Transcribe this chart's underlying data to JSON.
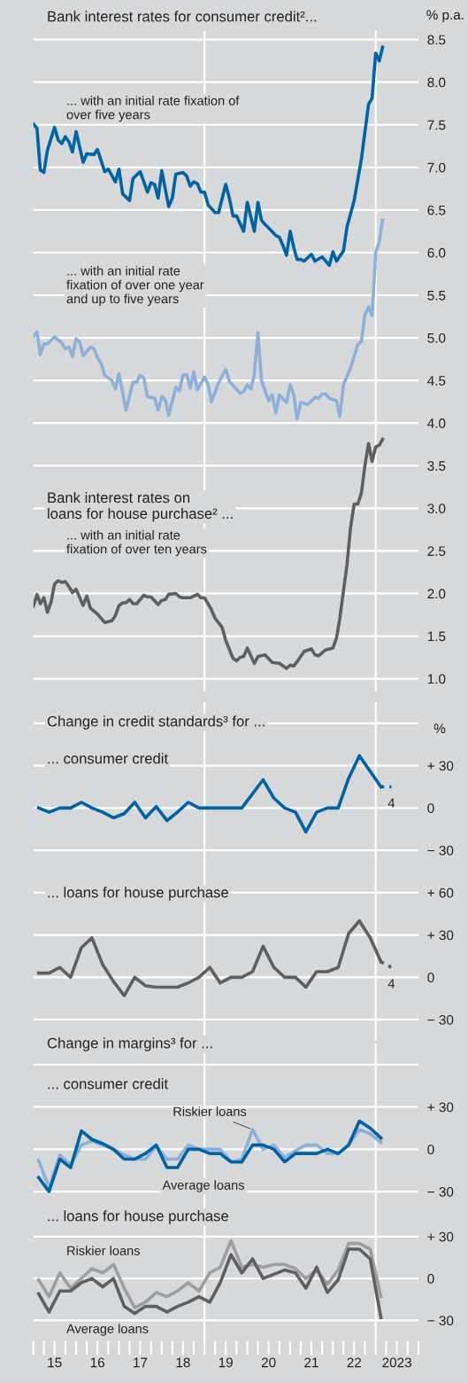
{
  "chart_data": [
    {
      "type": "line",
      "title": "Bank interest rates for consumer credit²...",
      "ylabel": "% p.a.",
      "xlim": [
        "2015-01-01",
        "2024-01-01"
      ],
      "ylim": [
        0.85,
        8.6
      ],
      "tick_labels": "y",
      "grid": "y",
      "legend": false,
      "yticks": [
        {
          "value": 1,
          "label": "1.0"
        },
        1.5,
        {
          "value": 2,
          "label": "2.0"
        },
        2.5,
        {
          "value": 3,
          "label": "3.0"
        },
        3.5,
        {
          "value": 4,
          "label": "4.0"
        },
        4.5,
        {
          "value": 5,
          "label": "5.0"
        },
        5.5,
        {
          "value": 6,
          "label": "6.0"
        },
        6.5,
        {
          "value": 7,
          "label": "7.0"
        },
        7.5,
        {
          "value": 8,
          "label": "8.0"
        },
        8.5
      ],
      "annotations": [
        "Bank interest rates on\nloans for house purchase² ..."
      ],
      "ref_lines": [
        {
          "axis": "x",
          "value": "2019-01-01",
          "color": "#ffffff"
        },
        {
          "axis": "x",
          "value": "2023-01-01",
          "color": "#ffffff"
        }
      ],
      "series": [
        {
          "name": "... with an initial rate fixation of\nover five years",
          "color": "#0063a3",
          "x": [
            "2015-01",
            "2015-02",
            "2015-03",
            "2015-04",
            "2015-05",
            "2015-07",
            "2015-08",
            "2015-09",
            "2015-10",
            "2015-11",
            "2015-12",
            "2016-01",
            "2016-03",
            "2016-04",
            "2016-06",
            "2016-07",
            "2016-09",
            "2016-10",
            "2016-12",
            "2017-01",
            "2017-02",
            "2017-04",
            "2017-05",
            "2017-07",
            "2017-09",
            "2017-10",
            "2017-11",
            "2017-12",
            "2018-01",
            "2018-03",
            "2018-04",
            "2018-05",
            "2018-07",
            "2018-08",
            "2018-09",
            "2018-10",
            "2018-11",
            "2018-12",
            "2019-01",
            "2019-02",
            "2019-04",
            "2019-05",
            "2019-07",
            "2019-08",
            "2019-09",
            "2019-10",
            "2019-12",
            "2020-01",
            "2020-03",
            "2020-04",
            "2020-05",
            "2020-06",
            "2020-07",
            "2020-09",
            "2020-10",
            "2020-11",
            "2020-12",
            "2021-01",
            "2021-02",
            "2021-03",
            "2021-04",
            "2021-05",
            "2021-07",
            "2021-08",
            "2021-10",
            "2021-12",
            "2022-01",
            "2022-02",
            "2022-04",
            "2022-05",
            "2022-07",
            "2022-09",
            "2022-11",
            "2022-12",
            "2023-01",
            "2023-02",
            "2023-03"
          ],
          "values": [
            7.51,
            7.46,
            6.97,
            6.94,
            7.2,
            7.47,
            7.32,
            7.28,
            7.36,
            7.3,
            7.18,
            7.42,
            7.06,
            7.16,
            7.15,
            7.21,
            6.95,
            6.98,
            6.83,
            6.98,
            6.69,
            6.61,
            6.87,
            6.95,
            6.71,
            6.82,
            6.8,
            6.64,
            6.96,
            6.54,
            6.64,
            6.92,
            6.94,
            6.9,
            6.78,
            6.83,
            6.81,
            6.71,
            6.71,
            6.56,
            6.47,
            6.47,
            6.8,
            6.64,
            6.43,
            6.43,
            6.25,
            6.59,
            6.25,
            6.59,
            6.38,
            6.33,
            6.29,
            6.2,
            6.18,
            6.08,
            5.97,
            6.25,
            6.06,
            5.92,
            5.92,
            5.9,
            5.98,
            5.9,
            5.95,
            5.85,
            6.01,
            5.9,
            6.02,
            6.3,
            6.61,
            7.1,
            7.74,
            7.81,
            8.34,
            8.25,
            8.41
          ]
        },
        {
          "name": "... with an initial rate\nfixation of over one year\nand up to five years",
          "color": "#8dafd8",
          "x": [
            "2015-01",
            "2015-02",
            "2015-03",
            "2015-04",
            "2015-05",
            "2015-07",
            "2015-09",
            "2015-10",
            "2015-11",
            "2015-12",
            "2016-01",
            "2016-02",
            "2016-03",
            "2016-05",
            "2016-06",
            "2016-07",
            "2016-08",
            "2016-09",
            "2016-11",
            "2016-12",
            "2017-01",
            "2017-03",
            "2017-05",
            "2017-06",
            "2017-07",
            "2017-08",
            "2017-09",
            "2017-11",
            "2017-12",
            "2018-01",
            "2018-02",
            "2018-03",
            "2018-05",
            "2018-06",
            "2018-07",
            "2018-08",
            "2018-09",
            "2018-10",
            "2018-11",
            "2019-01",
            "2019-02",
            "2019-03",
            "2019-05",
            "2019-07",
            "2019-08",
            "2019-11",
            "2019-12",
            "2020-01",
            "2020-02",
            "2020-03",
            "2020-04",
            "2020-05",
            "2020-07",
            "2020-08",
            "2020-09",
            "2020-10",
            "2020-12",
            "2021-01",
            "2021-02",
            "2021-03",
            "2021-04",
            "2021-06",
            "2021-08",
            "2021-09",
            "2021-10",
            "2021-11",
            "2021-12",
            "2022-02",
            "2022-03",
            "2022-04",
            "2022-06",
            "2022-08",
            "2022-09",
            "2022-10",
            "2022-11",
            "2022-12",
            "2023-01",
            "2023-02",
            "2023-03"
          ],
          "values": [
            5.01,
            5.07,
            4.8,
            4.93,
            4.93,
            5.01,
            4.94,
            4.87,
            4.89,
            4.78,
            4.99,
            4.95,
            4.79,
            4.89,
            4.87,
            4.77,
            4.7,
            4.56,
            4.5,
            4.4,
            4.58,
            4.15,
            4.48,
            4.48,
            4.56,
            4.53,
            4.31,
            4.29,
            4.15,
            4.31,
            4.27,
            4.09,
            4.42,
            4.38,
            4.56,
            4.57,
            4.41,
            4.6,
            4.39,
            4.54,
            4.45,
            4.25,
            4.47,
            4.63,
            4.49,
            4.35,
            4.37,
            4.45,
            4.4,
            4.57,
            5.06,
            4.5,
            4.26,
            4.33,
            4.12,
            4.33,
            4.24,
            4.45,
            4.33,
            4.05,
            4.24,
            4.22,
            4.3,
            4.29,
            4.34,
            4.34,
            4.29,
            4.26,
            4.08,
            4.45,
            4.65,
            4.92,
            4.96,
            5.27,
            5.36,
            5.26,
            6.0,
            6.13,
            6.38
          ]
        },
        {
          "name": "... with an initial rate\nfixation of over ten years",
          "color": "#5e5f61",
          "x": [
            "2015-01",
            "2015-02",
            "2015-03",
            "2015-04",
            "2015-05",
            "2015-06",
            "2015-07",
            "2015-08",
            "2015-09",
            "2015-10",
            "2015-11",
            "2015-12",
            "2016-01",
            "2016-03",
            "2016-04",
            "2016-05",
            "2016-07",
            "2016-09",
            "2016-11",
            "2016-12",
            "2017-01",
            "2017-02",
            "2017-03",
            "2017-04",
            "2017-05",
            "2017-06",
            "2017-08",
            "2017-09",
            "2017-10",
            "2017-12",
            "2018-01",
            "2018-02",
            "2018-03",
            "2018-05",
            "2018-06",
            "2018-07",
            "2018-09",
            "2018-11",
            "2018-12",
            "2019-01",
            "2019-03",
            "2019-04",
            "2019-06",
            "2019-07",
            "2019-09",
            "2019-10",
            "2019-11",
            "2019-12",
            "2020-01",
            "2020-03",
            "2020-04",
            "2020-06",
            "2020-08",
            "2020-10",
            "2020-12",
            "2021-01",
            "2021-02",
            "2021-03",
            "2021-05",
            "2021-07",
            "2021-08",
            "2021-09",
            "2021-11",
            "2022-01",
            "2022-02",
            "2022-03",
            "2022-05",
            "2022-06",
            "2022-07",
            "2022-08",
            "2022-09",
            "2022-10",
            "2022-11",
            "2022-12",
            "2023-01",
            "2023-02",
            "2023-03"
          ],
          "values": [
            1.85,
            1.99,
            1.88,
            1.95,
            1.78,
            1.9,
            2.11,
            2.15,
            2.13,
            2.14,
            2.08,
            2.01,
            2.05,
            1.86,
            1.97,
            1.83,
            1.76,
            1.66,
            1.68,
            1.74,
            1.86,
            1.89,
            1.89,
            1.93,
            1.88,
            1.88,
            1.98,
            1.96,
            1.96,
            1.87,
            1.92,
            1.93,
            1.99,
            2.0,
            1.96,
            1.95,
            1.95,
            1.99,
            1.95,
            1.95,
            1.81,
            1.71,
            1.6,
            1.45,
            1.24,
            1.21,
            1.25,
            1.26,
            1.36,
            1.18,
            1.26,
            1.28,
            1.19,
            1.18,
            1.12,
            1.16,
            1.15,
            1.2,
            1.32,
            1.35,
            1.28,
            1.27,
            1.34,
            1.36,
            1.48,
            1.71,
            2.34,
            2.78,
            3.05,
            3.05,
            3.18,
            3.5,
            3.76,
            3.55,
            3.72,
            3.74,
            3.81
          ]
        }
      ]
    },
    {
      "type": "line",
      "title": "Change in credit standards³ for ...",
      "subtitle": "... consumer credit",
      "ylabel": "%",
      "xlim": [
        "2015-01-01",
        "2024-01-01"
      ],
      "ylim": [
        -45,
        75
      ],
      "tick_labels": "y",
      "grid": "y",
      "legend": false,
      "yticks": [
        {
          "value": -30,
          "label": "− 30"
        },
        0,
        {
          "value": 30,
          "label": "+ 30"
        },
        {
          "value": 60,
          "label": null
        }
      ],
      "x": [
        "2015-02-15",
        "2015-05-15",
        "2015-08-15",
        "2015-11-15",
        "2016-02-15",
        "2016-05-15",
        "2016-08-15",
        "2016-11-15",
        "2017-02-15",
        "2017-05-15",
        "2017-08-15",
        "2017-11-15",
        "2018-02-15",
        "2018-05-15",
        "2018-08-15",
        "2018-11-15",
        "2019-02-15",
        "2019-05-15",
        "2019-08-15",
        "2019-11-15",
        "2020-02-15",
        "2020-05-15",
        "2020-08-15",
        "2020-11-15",
        "2021-02-15",
        "2021-05-15",
        "2021-08-15",
        "2021-11-15",
        "2022-02-15",
        "2022-05-15",
        "2022-08-15",
        "2022-11-15",
        "2023-02-15"
      ],
      "annotations": [
        {
          "text": "4",
          "x": "2023-05-15",
          "y": 15
        }
      ],
      "ref_lines": [
        {
          "axis": "x",
          "value": "2019-01-01",
          "color": "#ffffff"
        },
        {
          "axis": "x",
          "value": "2023-01-01",
          "color": "#ffffff"
        }
      ],
      "series": [
        {
          "color": "#0063a3",
          "values": [
            0,
            -3,
            0,
            0,
            4,
            0,
            -3,
            -7,
            -4,
            4,
            -7,
            1,
            -9,
            -3,
            4,
            0,
            0,
            0,
            0,
            0,
            10,
            20,
            7,
            0,
            -3,
            -17,
            -3,
            0,
            0,
            21,
            37,
            26,
            15
          ]
        },
        {
          "color": "#0063a3",
          "line_style": "dotted",
          "x": [
            "2023-02-15",
            "2023-05-15"
          ],
          "values": [
            15,
            15
          ]
        }
      ]
    },
    {
      "type": "line",
      "title": "... loans for house purchase",
      "xlim": [
        "2015-01-01",
        "2024-01-01"
      ],
      "ylim": [
        -45,
        75
      ],
      "tick_labels": "y",
      "grid": "y",
      "legend": false,
      "yticks": [
        {
          "value": -30,
          "label": "− 30"
        },
        0,
        {
          "value": 30,
          "label": "+ 30"
        },
        {
          "value": 60,
          "label": "+ 60"
        }
      ],
      "x": [
        "2015-02-15",
        "2015-05-15",
        "2015-08-15",
        "2015-11-15",
        "2016-02-15",
        "2016-05-15",
        "2016-08-15",
        "2016-11-15",
        "2017-02-15",
        "2017-05-15",
        "2017-08-15",
        "2017-11-15",
        "2018-02-15",
        "2018-05-15",
        "2018-08-15",
        "2018-11-15",
        "2019-02-15",
        "2019-05-15",
        "2019-08-15",
        "2019-11-15",
        "2020-02-15",
        "2020-05-15",
        "2020-08-15",
        "2020-11-15",
        "2021-02-15",
        "2021-05-15",
        "2021-08-15",
        "2021-11-15",
        "2022-02-15",
        "2022-05-15",
        "2022-08-15",
        "2022-11-15",
        "2023-02-15"
      ],
      "annotations": [
        {
          "text": "4",
          "x": "2023-05-15",
          "y": 7
        }
      ],
      "ref_lines": [
        {
          "axis": "x",
          "value": "2019-01-01",
          "color": "#ffffff"
        },
        {
          "axis": "x",
          "value": "2023-01-01",
          "color": "#ffffff"
        }
      ],
      "series": [
        {
          "color": "#5e5f61",
          "values": [
            3,
            3,
            7,
            0,
            21,
            28,
            9,
            -3,
            -13,
            0,
            -6,
            -7,
            -7,
            -7,
            -4,
            0,
            7,
            -4,
            0,
            0,
            4,
            22,
            7,
            0,
            0,
            -7,
            4,
            4,
            7,
            31,
            40,
            28,
            11
          ]
        },
        {
          "color": "#5e5f61",
          "line_style": "dotted",
          "x": [
            "2023-02-15",
            "2023-05-15"
          ],
          "values": [
            11,
            7
          ]
        }
      ]
    },
    {
      "type": "line",
      "title": "Change in margins³ for ...",
      "subtitle": "... consumer credit",
      "xlim": [
        "2015-01-01",
        "2024-01-01"
      ],
      "ylim": [
        -45,
        75
      ],
      "tick_labels": "y",
      "grid": "y",
      "legend": false,
      "yticks": [
        {
          "value": -30,
          "label": "− 30"
        },
        0,
        {
          "value": 30,
          "label": "+ 30"
        },
        {
          "value": 60,
          "label": null
        }
      ],
      "x": [
        "2015-02-15",
        "2015-05-15",
        "2015-08-15",
        "2015-11-15",
        "2016-02-15",
        "2016-05-15",
        "2016-08-15",
        "2016-11-15",
        "2017-02-15",
        "2017-05-15",
        "2017-08-15",
        "2017-11-15",
        "2018-02-15",
        "2018-05-15",
        "2018-08-15",
        "2018-11-15",
        "2019-02-15",
        "2019-05-15",
        "2019-08-15",
        "2019-11-15",
        "2020-02-15",
        "2020-05-15",
        "2020-08-15",
        "2020-11-15",
        "2021-02-15",
        "2021-05-15",
        "2021-08-15",
        "2021-11-15",
        "2022-02-15",
        "2022-05-15",
        "2022-08-15",
        "2022-11-15",
        "2023-02-15"
      ],
      "ref_lines": [
        {
          "axis": "x",
          "value": "2019-01-01",
          "color": "#ffffff"
        },
        {
          "axis": "x",
          "value": "2023-01-01",
          "color": "#ffffff"
        }
      ],
      "series": [
        {
          "name": "Riskier loans",
          "color": "#8dafd8",
          "values": [
            -8,
            -27,
            -4,
            -11,
            3,
            6,
            3,
            0,
            -4,
            -7,
            -7,
            2,
            -7,
            -7,
            3,
            0,
            0,
            0,
            -9,
            -7,
            14,
            0,
            3,
            -6,
            -1,
            3,
            3,
            -3,
            -3,
            3,
            14,
            11,
            5
          ]
        },
        {
          "name": "Average loans",
          "color": "#0063a3",
          "values": [
            -20,
            -30,
            -7,
            -13,
            13,
            7,
            4,
            0,
            -7,
            -7,
            -3,
            3,
            -13,
            -13,
            0,
            0,
            -3,
            -3,
            -9,
            -9,
            3,
            3,
            0,
            -9,
            -3,
            -3,
            -3,
            0,
            -3,
            3,
            20,
            15,
            8
          ]
        }
      ]
    },
    {
      "type": "line",
      "title": "... loans for house purchase",
      "xlim": [
        "2015-01-01",
        "2024-01-01"
      ],
      "ylim": [
        -45,
        47
      ],
      "grid": "y",
      "legend": false,
      "yticks": [
        {
          "value": -30,
          "label": "− 30"
        },
        0,
        {
          "value": 30,
          "label": "+ 30"
        }
      ],
      "xticks": [
        {
          "value": "2015-01-01",
          "label": null
        },
        {
          "value": "2015-04-01",
          "label": null
        },
        {
          "value": "2015-07-01",
          "label": "15"
        },
        {
          "value": "2015-10-01",
          "label": null
        },
        {
          "value": "2016-01-01",
          "label": null
        },
        {
          "value": "2016-04-01",
          "label": null
        },
        {
          "value": "2016-07-01",
          "label": "16"
        },
        {
          "value": "2016-10-01",
          "label": null
        },
        {
          "value": "2017-01-01",
          "label": null
        },
        {
          "value": "2017-04-01",
          "label": null
        },
        {
          "value": "2017-07-01",
          "label": "17"
        },
        {
          "value": "2017-10-01",
          "label": null
        },
        {
          "value": "2018-01-01",
          "label": null
        },
        {
          "value": "2018-04-01",
          "label": null
        },
        {
          "value": "2018-07-01",
          "label": "18"
        },
        {
          "value": "2018-10-01",
          "label": null
        },
        {
          "value": "2019-01-01",
          "label": null
        },
        {
          "value": "2019-04-01",
          "label": null
        },
        {
          "value": "2019-07-01",
          "label": "19"
        },
        {
          "value": "2019-10-01",
          "label": null
        },
        {
          "value": "2020-01-01",
          "label": null
        },
        {
          "value": "2020-04-01",
          "label": null
        },
        {
          "value": "2020-07-01",
          "label": "20"
        },
        {
          "value": "2020-10-01",
          "label": null
        },
        {
          "value": "2021-01-01",
          "label": null
        },
        {
          "value": "2021-04-01",
          "label": null
        },
        {
          "value": "2021-07-01",
          "label": "21"
        },
        {
          "value": "2021-10-01",
          "label": null
        },
        {
          "value": "2022-01-01",
          "label": null
        },
        {
          "value": "2022-04-01",
          "label": null
        },
        {
          "value": "2022-07-01",
          "label": "22"
        },
        {
          "value": "2022-10-01",
          "label": null
        },
        {
          "value": "2023-01-01",
          "label": null
        },
        {
          "value": "2023-04-01",
          "label": null
        },
        {
          "value": "2023-07-01",
          "label": "2023"
        },
        {
          "value": "2023-10-01",
          "label": null
        },
        {
          "value": "2024-01-01",
          "label": null
        }
      ],
      "x": [
        "2015-02-15",
        "2015-05-15",
        "2015-08-15",
        "2015-11-15",
        "2016-02-15",
        "2016-05-15",
        "2016-08-15",
        "2016-11-15",
        "2017-02-15",
        "2017-05-15",
        "2017-08-15",
        "2017-11-15",
        "2018-02-15",
        "2018-05-15",
        "2018-08-15",
        "2018-11-15",
        "2019-02-15",
        "2019-05-15",
        "2019-08-15",
        "2019-11-15",
        "2020-02-15",
        "2020-05-15",
        "2020-08-15",
        "2020-11-15",
        "2021-02-15",
        "2021-05-15",
        "2021-08-15",
        "2021-11-15",
        "2022-02-15",
        "2022-05-15",
        "2022-08-15",
        "2022-11-15",
        "2023-02-15"
      ],
      "ref_lines": [
        {
          "axis": "x",
          "value": "2019-01-01",
          "color": "#ffffff"
        },
        {
          "axis": "x",
          "value": "2023-01-01",
          "color": "#ffffff"
        }
      ],
      "series": [
        {
          "name": "Riskier loans",
          "color": "#9d9ea0",
          "values": [
            -1,
            -13,
            4,
            -7,
            0,
            7,
            4,
            10,
            -7,
            -21,
            -17,
            -10,
            -13,
            -9,
            -3,
            -9,
            4,
            8,
            27,
            8,
            10,
            8,
            10,
            10,
            7,
            0,
            6,
            -4,
            6,
            25,
            25,
            21,
            -13
          ]
        },
        {
          "name": "Average loans",
          "color": "#5e5f61",
          "values": [
            -11,
            -24,
            -9,
            -9,
            -3,
            0,
            -6,
            0,
            -20,
            -25,
            -20,
            -20,
            -24,
            -20,
            -17,
            -13,
            -17,
            -3,
            17,
            4,
            14,
            0,
            3,
            6,
            4,
            -7,
            8,
            -10,
            -1,
            21,
            21,
            14,
            -28
          ]
        }
      ]
    }
  ]
}
